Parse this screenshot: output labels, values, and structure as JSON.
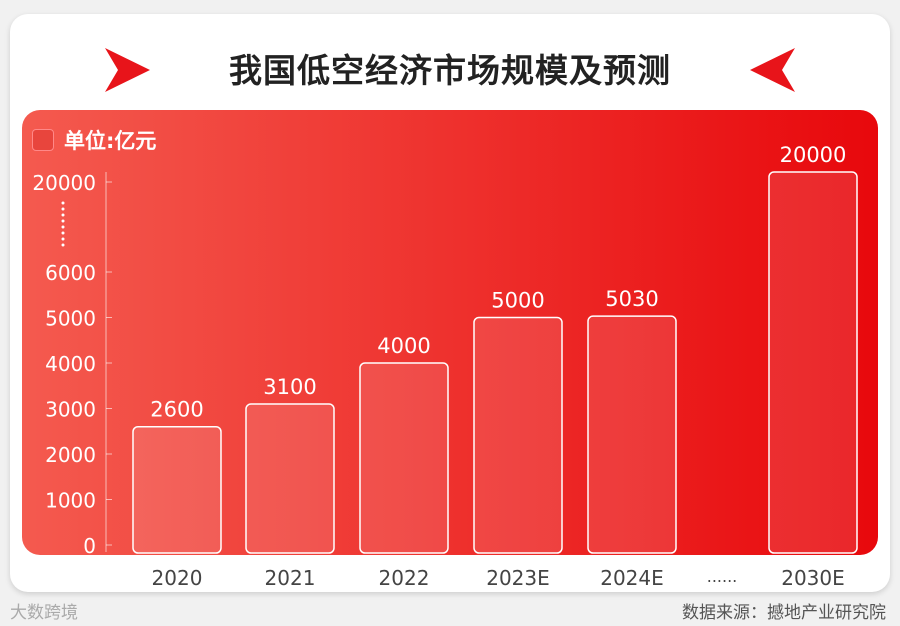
{
  "title": "我国低空经济市场规模及预测",
  "unit_label": "单位:亿元",
  "source": "数据来源：撼地产业研究院",
  "watermark": "大数跨境",
  "chart_data": {
    "type": "bar",
    "title": "我国低空经济市场规模及预测",
    "ylabel": "单位:亿元",
    "categories": [
      "2020",
      "2021",
      "2022",
      "2023E",
      "2024E",
      "2030E"
    ],
    "values": [
      2600,
      3100,
      4000,
      5000,
      5030,
      20000
    ],
    "yticks": [
      0,
      1000,
      2000,
      3000,
      4000,
      5000,
      6000,
      20000
    ],
    "axis_break": "6000-20000",
    "x_gap_label": "......",
    "colors": {
      "panel_start": "#f45a4f",
      "panel_end": "#e8080c",
      "bar_border": "#ffffff"
    }
  }
}
